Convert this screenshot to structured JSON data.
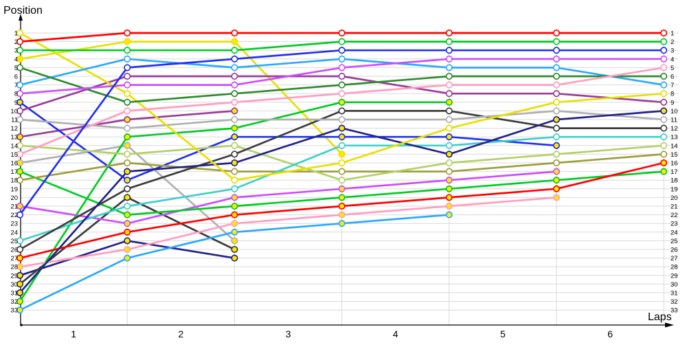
{
  "chart_data": {
    "type": "line",
    "title": "",
    "ylabel": "Position",
    "xlabel": "Laps",
    "x_ticks": [
      "1",
      "2",
      "3",
      "4",
      "5",
      "6"
    ],
    "x_tick_values": [
      1,
      2,
      3,
      4,
      5,
      6
    ],
    "laps": [
      0.5,
      1.5,
      2.5,
      3.5,
      4.5,
      5.5,
      6.5
    ],
    "ylim": [
      1,
      33
    ],
    "xlim": [
      0,
      6.9
    ],
    "grid": "on",
    "legend": "none",
    "y_inverted": true,
    "position_labels": [
      1,
      2,
      3,
      4,
      5,
      6,
      7,
      8,
      9,
      10,
      11,
      12,
      13,
      14,
      15,
      16,
      17,
      18,
      19,
      20,
      21,
      22,
      23,
      24,
      25,
      26,
      27,
      28,
      29,
      30,
      31,
      32,
      33
    ],
    "marker_fills": {
      "white": "#ffffff",
      "yellow": "#ffe800"
    },
    "axis_color": "#000000",
    "grid_color": "#d9d9d9",
    "series": [
      {
        "name": "car-navy-b",
        "color": "#232387",
        "marker_fill": "yellow",
        "positions": [
          29,
          25,
          27,
          null,
          null,
          null,
          null
        ]
      },
      {
        "name": "car-darkgray-b",
        "color": "#3c3c3c",
        "marker_fill": "yellow",
        "positions": [
          30,
          20,
          26,
          null,
          null,
          null,
          null
        ]
      },
      {
        "name": "car-silver-b",
        "color": "#b0b0b0",
        "marker_fill": "yellow",
        "positions": [
          16,
          14,
          25,
          null,
          null,
          null,
          null
        ]
      },
      {
        "name": "car-purple-b",
        "color": "#993d99",
        "marker_fill": "yellow",
        "positions": [
          13,
          11,
          10,
          null,
          null,
          null,
          null
        ]
      },
      {
        "name": "car-yellow-b",
        "color": "#e8e000",
        "marker_fill": "yellow",
        "positions": [
          4,
          2,
          2,
          15,
          null,
          null,
          null
        ]
      },
      {
        "name": "car-skyblue-b",
        "color": "#2aa9ff",
        "marker_fill": "yellow",
        "positions": [
          33,
          27,
          24,
          23,
          22,
          null,
          null
        ]
      },
      {
        "name": "car-green-c",
        "color": "#00cc22",
        "marker_fill": "yellow",
        "positions": [
          32,
          13,
          12,
          9,
          9,
          null,
          null
        ]
      },
      {
        "name": "car-pink-b",
        "color": "#ff9dc0",
        "marker_fill": "yellow",
        "positions": [
          28,
          26,
          23,
          22,
          21,
          20,
          null
        ]
      },
      {
        "name": "car-violet-b",
        "color": "#cc4dff",
        "marker_fill": "yellow",
        "positions": [
          21,
          23,
          20,
          19,
          18,
          17,
          null
        ]
      },
      {
        "name": "car-blue-b",
        "color": "#2230ee",
        "marker_fill": "yellow",
        "positions": [
          9,
          18,
          13,
          13,
          13,
          14,
          null
        ]
      },
      {
        "name": "car-green-b",
        "color": "#00cc22",
        "marker_fill": "yellow",
        "positions": [
          17,
          22,
          21,
          20,
          19,
          18,
          17
        ]
      },
      {
        "name": "car-red-b",
        "color": "#ff0000",
        "marker_fill": "yellow",
        "positions": [
          27,
          24,
          22,
          21,
          20,
          19,
          16
        ]
      },
      {
        "name": "car-olive",
        "color": "#9f9f3c",
        "marker_fill": "white",
        "positions": [
          18,
          16,
          17,
          17,
          17,
          16,
          15
        ]
      },
      {
        "name": "car-palegreen",
        "color": "#b3d166",
        "marker_fill": "white",
        "positions": [
          14,
          15,
          14,
          18,
          16,
          15,
          14
        ]
      },
      {
        "name": "car-turquoise",
        "color": "#3fcfca",
        "marker_fill": "white",
        "positions": [
          25,
          21,
          19,
          14,
          14,
          13,
          13
        ]
      },
      {
        "name": "car-darkgray-a",
        "color": "#3c3c3c",
        "marker_fill": "white",
        "positions": [
          26,
          19,
          15,
          10,
          10,
          12,
          12
        ]
      },
      {
        "name": "car-silver-a",
        "color": "#b0b0b0",
        "marker_fill": "white",
        "positions": [
          11,
          12,
          11,
          11,
          11,
          10,
          11
        ]
      },
      {
        "name": "car-navy-a",
        "color": "#232387",
        "marker_fill": "yellow",
        "positions": [
          31,
          17,
          16,
          12,
          15,
          11,
          10
        ]
      },
      {
        "name": "car-purple-a",
        "color": "#993d99",
        "marker_fill": "white",
        "positions": [
          10,
          6,
          6,
          6,
          8,
          8,
          9
        ]
      },
      {
        "name": "car-yellow-a",
        "color": "#e8e000",
        "marker_fill": "white",
        "positions": [
          1,
          8,
          18,
          16,
          12,
          9,
          8
        ]
      },
      {
        "name": "car-skyblue-a",
        "color": "#2aa9ff",
        "marker_fill": "white",
        "positions": [
          7,
          4,
          5,
          4,
          5,
          5,
          7
        ]
      },
      {
        "name": "car-forestgreen",
        "color": "#2e8b2e",
        "marker_fill": "white",
        "positions": [
          5,
          9,
          8,
          7,
          6,
          6,
          6
        ]
      },
      {
        "name": "car-pink-a",
        "color": "#ff9dc0",
        "marker_fill": "white",
        "positions": [
          15,
          10,
          9,
          8,
          7,
          7,
          5
        ]
      },
      {
        "name": "car-violet-a",
        "color": "#cc4dff",
        "marker_fill": "white",
        "positions": [
          8,
          7,
          7,
          5,
          4,
          4,
          4
        ]
      },
      {
        "name": "car-blue-a",
        "color": "#2230ee",
        "marker_fill": "white",
        "positions": [
          22,
          5,
          4,
          3,
          3,
          3,
          3
        ]
      },
      {
        "name": "car-green-a",
        "color": "#00cc22",
        "marker_fill": "white",
        "positions": [
          3,
          3,
          3,
          2,
          2,
          2,
          2
        ]
      },
      {
        "name": "car-red-a",
        "color": "#ff0000",
        "marker_fill": "white",
        "positions": [
          2,
          1,
          1,
          1,
          1,
          1,
          1
        ]
      }
    ]
  }
}
